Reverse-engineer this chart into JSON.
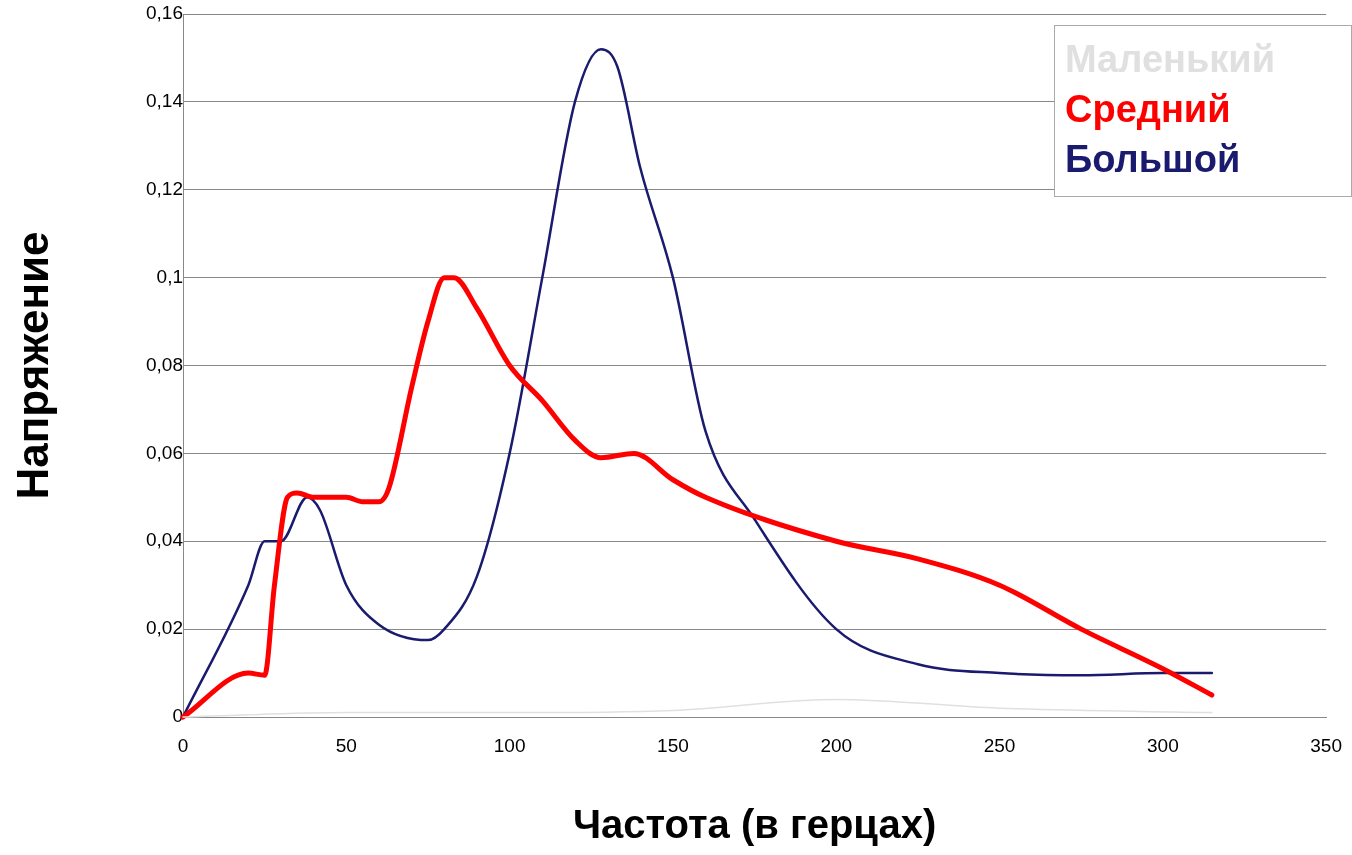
{
  "chart_data": {
    "type": "line",
    "xlabel": "Частота (в герцах)",
    "ylabel": "Напряжение",
    "xlim": [
      0,
      350
    ],
    "xticks": [
      0,
      50,
      100,
      150,
      200,
      250,
      300,
      350
    ],
    "ylim": [
      0,
      0.16
    ],
    "yticks": [
      0,
      {
        "value": 0.02,
        "label": "0,02"
      },
      {
        "value": 0.04,
        "label": "0,04"
      },
      {
        "value": 0.06,
        "label": "0,06"
      },
      {
        "value": 0.08,
        "label": "0,08"
      },
      {
        "value": 0.1,
        "label": "0,1"
      },
      {
        "value": 0.12,
        "label": "0,12"
      },
      {
        "value": 0.14,
        "label": "0,14"
      },
      {
        "value": 0.16,
        "label": "0,16"
      }
    ],
    "grid": "y",
    "legend": "top right",
    "marker": "none",
    "line_style": "solid",
    "series": [
      {
        "name": "Маленький",
        "color": "#e0e0e0",
        "x": [
          0,
          50,
          100,
          150,
          200,
          250,
          315
        ],
        "values": [
          0,
          0.001,
          0.001,
          0.0015,
          0.004,
          0.002,
          0.001
        ]
      },
      {
        "name": "Средний",
        "color": "#ff0000",
        "x": [
          0,
          20,
          25,
          28,
          32,
          35,
          40,
          50,
          55,
          60,
          63,
          70,
          75,
          80,
          83,
          90,
          100,
          110,
          120,
          128,
          138,
          150,
          160,
          200,
          225,
          250,
          275,
          300,
          315
        ],
        "values": [
          0,
          0.01,
          0.0095,
          0.03,
          0.05,
          0.051,
          0.05,
          0.05,
          0.049,
          0.049,
          0.052,
          0.075,
          0.09,
          0.1,
          0.1,
          0.093,
          0.08,
          0.072,
          0.063,
          0.059,
          0.06,
          0.054,
          0.05,
          0.04,
          0.036,
          0.03,
          0.02,
          0.011,
          0.005
        ]
      },
      {
        "name": "Большой",
        "color": "#1a1a6e",
        "x": [
          0,
          20,
          25,
          30,
          38,
          42,
          50,
          60,
          75,
          80,
          90,
          100,
          110,
          120,
          128,
          133,
          140,
          150,
          160,
          175,
          200,
          225,
          250,
          275,
          300,
          315
        ],
        "values": [
          0,
          0.03,
          0.04,
          0.04,
          0.05,
          0.047,
          0.03,
          0.021,
          0.0175,
          0.02,
          0.032,
          0.06,
          0.1,
          0.14,
          0.152,
          0.148,
          0.125,
          0.1,
          0.065,
          0.045,
          0.02,
          0.012,
          0.01,
          0.0095,
          0.01,
          0.01
        ]
      }
    ]
  }
}
